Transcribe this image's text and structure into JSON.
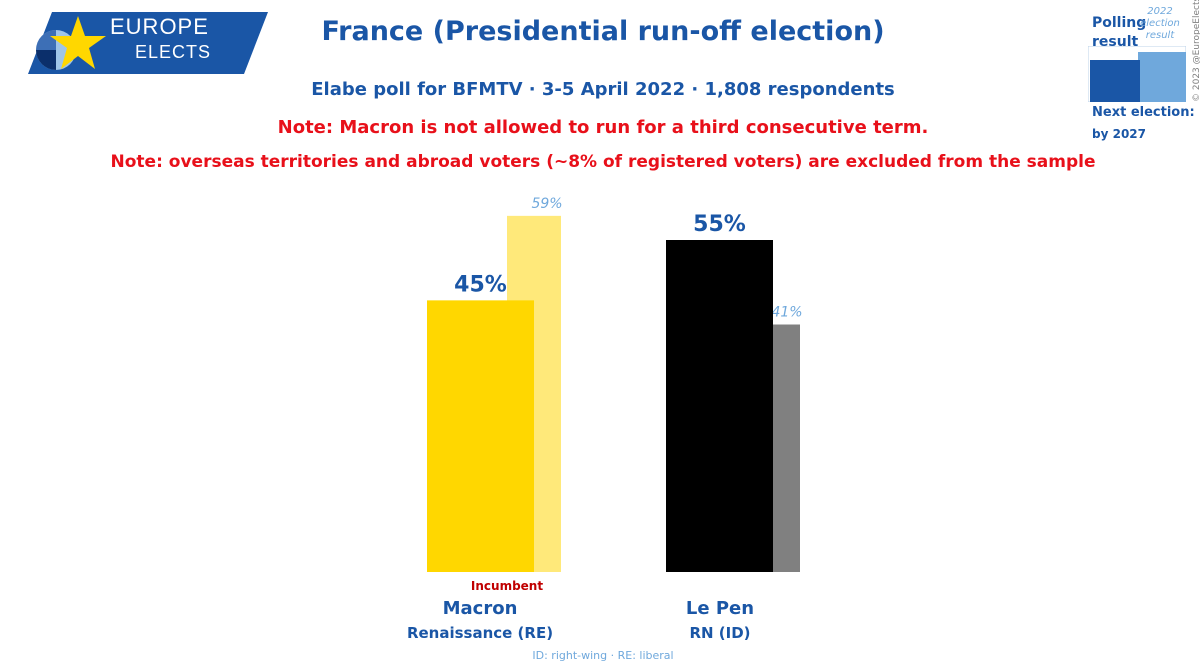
{
  "logo": {
    "line1": "EUROPE",
    "line2": "ELECTS"
  },
  "header": {
    "title": "France (Presidential run-off election)",
    "subtitle": "Elabe poll for BFMTV · 3-5 April 2022 · 1,808 respondents",
    "note1": "Note: Macron is not allowed to run for a third consecutive term.",
    "note2": "Note: overseas territories and abroad voters (~8% of registered voters) are excluded from the sample"
  },
  "legend": {
    "polling_line1": "Polling",
    "polling_line2": "result",
    "result_line1": "2022",
    "result_line2": "election",
    "result_line3": "result",
    "next_label": "Next election:",
    "next_value": "by 2027",
    "copyright": "© 2023 @EuropeElects"
  },
  "candidates": [
    {
      "name": "Macron",
      "party": "Renaissance (RE)",
      "incumbent": "Incumbent"
    },
    {
      "name": "Le Pen",
      "party": "RN (ID)"
    }
  ],
  "footnote": "ID: right-wing · RE: liberal",
  "colors": {
    "brand_blue": "#1a56a6",
    "light_blue": "#6fa8dc",
    "macron_poll": "#ffd700",
    "macron_prev": "#ffe97a",
    "lepen_poll": "#000000",
    "lepen_prev": "#808080",
    "note_red": "#e8101a"
  },
  "chart_data": {
    "type": "bar",
    "categories": [
      "Macron",
      "Le Pen"
    ],
    "series": [
      {
        "name": "Polling result",
        "values": [
          45,
          55
        ],
        "labels": [
          "45%",
          "55%"
        ]
      },
      {
        "name": "2022 election result",
        "values": [
          59,
          41
        ],
        "labels": [
          "59%",
          "41%"
        ]
      }
    ],
    "ylim": [
      0,
      100
    ]
  }
}
